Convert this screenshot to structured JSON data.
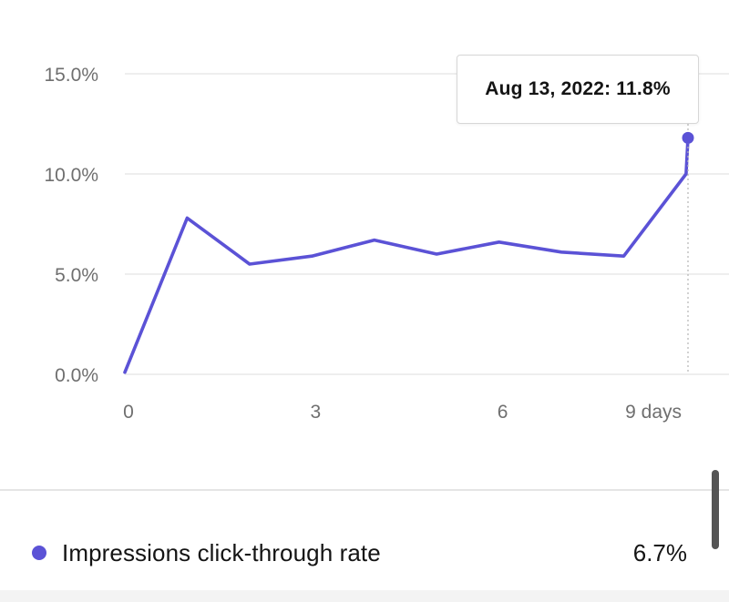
{
  "colors": {
    "series": "#5b52d6",
    "grid": "#e3e3e3",
    "axis_text": "#6f6f6f",
    "text": "#141414"
  },
  "tooltip": {
    "text": "Aug 13, 2022: 11.8%"
  },
  "legend": {
    "label": "Impressions click-through rate",
    "value": "6.7%"
  },
  "chart_data": {
    "type": "line",
    "x": [
      0,
      1,
      2,
      3,
      4,
      5,
      6,
      7,
      8,
      9,
      9.03
    ],
    "series": [
      {
        "name": "Impressions click-through rate",
        "values": [
          0.1,
          7.8,
          5.5,
          5.9,
          6.7,
          6.0,
          6.6,
          6.1,
          5.9,
          10.0,
          11.8
        ]
      }
    ],
    "xticks": [
      "0",
      "3",
      "6",
      "9 days"
    ],
    "xtick_values": [
      0,
      3,
      6,
      9
    ],
    "yticks": [
      "0.0%",
      "5.0%",
      "10.0%",
      "15.0%"
    ],
    "ytick_values": [
      0,
      5,
      10,
      15
    ],
    "xlim": [
      0,
      9.03
    ],
    "ylim": [
      0,
      15
    ],
    "grid": true,
    "highlight": {
      "x": 9.03,
      "y": 11.8
    }
  }
}
